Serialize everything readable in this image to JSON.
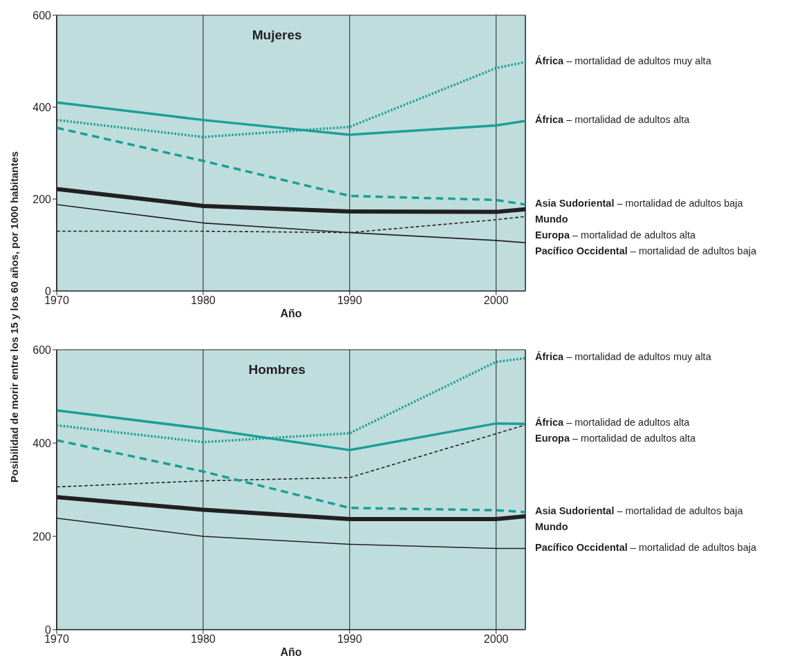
{
  "chart_data": [
    {
      "type": "line",
      "title": "Mujeres",
      "xlabel": "Año",
      "ylabel": "Posibilidad de morir entre los 15 y los 60 años, por 1000 habitantes",
      "x": [
        1970,
        1980,
        1990,
        2000,
        2002
      ],
      "xlim": [
        1970,
        2002
      ],
      "xticks": [
        1970,
        1980,
        1990,
        2000
      ],
      "ylim": [
        0,
        600
      ],
      "yticks": [
        0,
        200,
        400,
        600
      ],
      "grid": "x",
      "legend": "right",
      "marker": "none",
      "series": [
        {
          "name": "África – mortalidad de adultos muy alta",
          "color": "#1a9e96",
          "line_style": "dotted",
          "values": [
            372,
            335,
            357,
            485,
            498
          ]
        },
        {
          "name": "África – mortalidad de adultos alta",
          "color": "#1a9e96",
          "line_style": "solid",
          "values": [
            410,
            372,
            340,
            360,
            370
          ]
        },
        {
          "name": "Asia Sudoriental – mortalidad de adultos baja",
          "color": "#1a9e96",
          "line_style": "dashed",
          "values": [
            355,
            283,
            207,
            198,
            188
          ]
        },
        {
          "name": "Mundo",
          "color": "#231f20",
          "line_style": "solid",
          "values": [
            222,
            185,
            173,
            172,
            178
          ]
        },
        {
          "name": "Europa – mortalidad de adultos alta",
          "color": "#231f20",
          "line_style": "dashed",
          "values": [
            130,
            130,
            127,
            155,
            162
          ]
        },
        {
          "name": "Pacífico Occidental – mortalidad de adultos baja",
          "color": "#231f20",
          "line_style": "solid",
          "values": [
            188,
            148,
            127,
            110,
            105
          ]
        }
      ]
    },
    {
      "type": "line",
      "title": "Hombres",
      "xlabel": "Año",
      "x": [
        1970,
        1980,
        1990,
        2000,
        2002
      ],
      "xlim": [
        1970,
        2002
      ],
      "xticks": [
        1970,
        1980,
        1990,
        2000
      ],
      "ylim": [
        0,
        600
      ],
      "yticks": [
        0,
        200,
        400,
        600
      ],
      "grid": "x",
      "legend": "right",
      "marker": "none",
      "series": [
        {
          "name": "África – mortalidad de adultos muy alta",
          "color": "#1a9e96",
          "line_style": "dotted",
          "values": [
            438,
            402,
            421,
            574,
            582
          ]
        },
        {
          "name": "África – mortalidad de adultos alta",
          "color": "#1a9e96",
          "line_style": "solid",
          "values": [
            470,
            431,
            385,
            442,
            441
          ]
        },
        {
          "name": "Europa – mortalidad de adultos alta",
          "color": "#231f20",
          "line_style": "dashed",
          "values": [
            306,
            319,
            326,
            420,
            439
          ]
        },
        {
          "name": "Asia Sudoriental – mortalidad de adultos baja",
          "color": "#1a9e96",
          "line_style": "dashed",
          "values": [
            406,
            339,
            261,
            256,
            252
          ]
        },
        {
          "name": "Mundo",
          "color": "#231f20",
          "line_style": "solid",
          "values": [
            284,
            257,
            237,
            237,
            243
          ]
        },
        {
          "name": "Pacífico Occidental – mortalidad de adultos baja",
          "color": "#231f20",
          "line_style": "solid",
          "values": [
            239,
            200,
            183,
            174,
            174
          ]
        }
      ]
    }
  ]
}
